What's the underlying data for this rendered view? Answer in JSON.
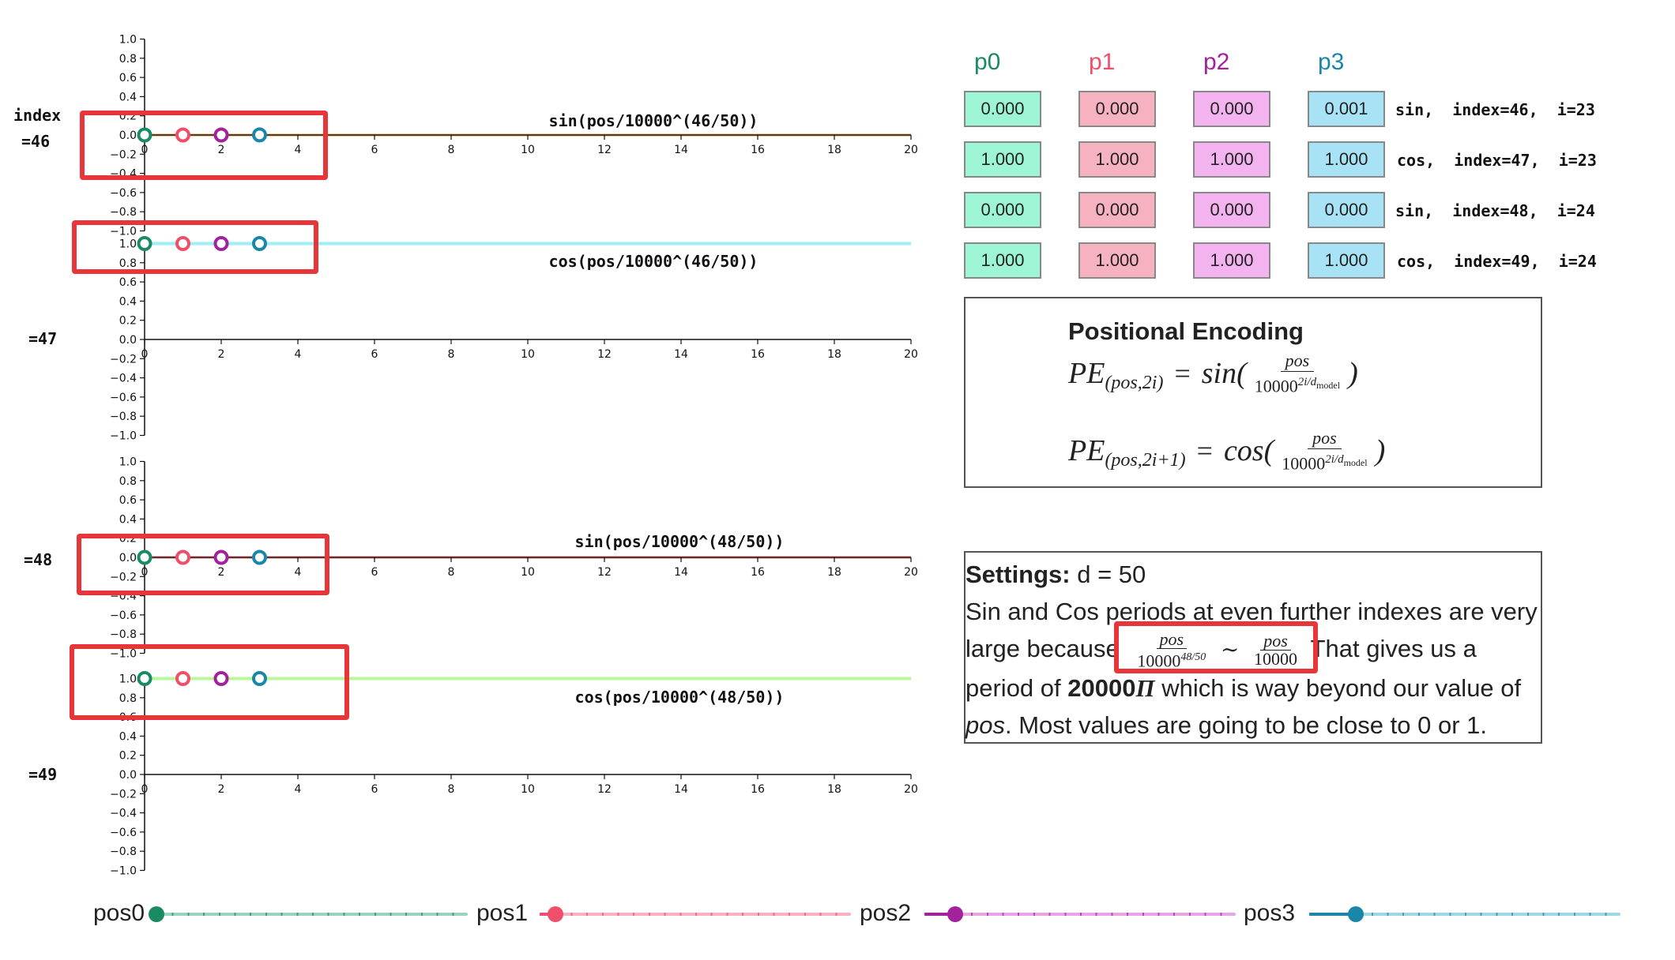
{
  "chart_data": [
    {
      "type": "line",
      "title": "sin(pos/10000^(46/50))",
      "index_label": "index\n=46",
      "line_color": "#f7c98d",
      "x": [
        0,
        20
      ],
      "y": [
        0,
        0
      ],
      "xlim": [
        0,
        20
      ],
      "ylim": [
        -1.0,
        1.0
      ],
      "xticks": [
        "0",
        "2",
        "4",
        "6",
        "8",
        "10",
        "12",
        "14",
        "16",
        "18",
        "20"
      ],
      "yticks": [
        "1.0",
        "0.8",
        "0.6",
        "0.4",
        "0.2",
        "0.0",
        "−0.2",
        "−0.4",
        "−0.6",
        "−0.8",
        "−1.0"
      ],
      "points": [
        {
          "x": 0,
          "y": 0.0
        },
        {
          "x": 1,
          "y": 0.0
        },
        {
          "x": 2,
          "y": 0.0
        },
        {
          "x": 3,
          "y": 0.001
        }
      ]
    },
    {
      "type": "line",
      "title": "cos(pos/10000^(46/50))",
      "index_label": "=47",
      "line_color": "#9eeef5",
      "x": [
        0,
        20
      ],
      "y": [
        1,
        1
      ],
      "xlim": [
        0,
        20
      ],
      "ylim": [
        -1.0,
        1.0
      ],
      "xticks": [
        "0",
        "2",
        "4",
        "6",
        "8",
        "10",
        "12",
        "14",
        "16",
        "18",
        "20"
      ],
      "yticks": [
        "1.0",
        "0.8",
        "0.6",
        "0.4",
        "0.2",
        "0.0",
        "−0.2",
        "−0.4",
        "−0.6",
        "−0.8",
        "−1.0"
      ],
      "points": [
        {
          "x": 0,
          "y": 1.0
        },
        {
          "x": 1,
          "y": 1.0
        },
        {
          "x": 2,
          "y": 1.0
        },
        {
          "x": 3,
          "y": 1.0
        }
      ]
    },
    {
      "type": "line",
      "title": "sin(pos/10000^(48/50))",
      "index_label": "=48",
      "line_color": "#f9b0b0",
      "x": [
        0,
        20
      ],
      "y": [
        0,
        0
      ],
      "xlim": [
        0,
        20
      ],
      "ylim": [
        -1.0,
        1.0
      ],
      "xticks": [
        "0",
        "2",
        "4",
        "6",
        "8",
        "10",
        "12",
        "14",
        "16",
        "18",
        "20"
      ],
      "yticks": [
        "1.0",
        "0.8",
        "0.6",
        "0.4",
        "0.2",
        "0.0",
        "−0.2",
        "−0.4",
        "−0.6",
        "−0.8",
        "−1.0"
      ],
      "points": [
        {
          "x": 0,
          "y": 0.0
        },
        {
          "x": 1,
          "y": 0.0
        },
        {
          "x": 2,
          "y": 0.0
        },
        {
          "x": 3,
          "y": 0.0
        }
      ]
    },
    {
      "type": "line",
      "title": "cos(pos/10000^(48/50))",
      "index_label": "=49",
      "line_color": "#b8f79a",
      "x": [
        0,
        20
      ],
      "y": [
        1,
        1
      ],
      "xlim": [
        0,
        20
      ],
      "ylim": [
        -1.0,
        1.0
      ],
      "xticks": [
        "0",
        "2",
        "4",
        "6",
        "8",
        "10",
        "12",
        "14",
        "16",
        "18",
        "20"
      ],
      "yticks": [
        "1.0",
        "0.8",
        "0.6",
        "0.4",
        "0.2",
        "0.0",
        "−0.2",
        "−0.4",
        "−0.6",
        "−0.8",
        "−1.0"
      ],
      "points": [
        {
          "x": 0,
          "y": 1.0
        },
        {
          "x": 1,
          "y": 1.0
        },
        {
          "x": 2,
          "y": 1.0
        },
        {
          "x": 3,
          "y": 1.0
        }
      ]
    }
  ],
  "point_colors": [
    "#1a8a63",
    "#ef4f6a",
    "#a1229a",
    "#1a86a8"
  ],
  "table": {
    "headers": [
      "p0",
      "p1",
      "p2",
      "p3"
    ],
    "header_colors": [
      "#1a8a63",
      "#ef4f6a",
      "#a1229a",
      "#1a86a8"
    ],
    "cell_colors": [
      "#9ef5d5",
      "#f7b2c2",
      "#f3b3ee",
      "#a8e2f5"
    ],
    "rows": [
      {
        "values": [
          "0.000",
          "0.000",
          "0.000",
          "0.001"
        ],
        "desc": "sin,  index=46,  i=23"
      },
      {
        "values": [
          "1.000",
          "1.000",
          "1.000",
          "1.000"
        ],
        "desc": "cos,  index=47,  i=23"
      },
      {
        "values": [
          "0.000",
          "0.000",
          "0.000",
          "0.000"
        ],
        "desc": "sin,  index=48,  i=24"
      },
      {
        "values": [
          "1.000",
          "1.000",
          "1.000",
          "1.000"
        ],
        "desc": "cos,  index=49,  i=24"
      }
    ]
  },
  "pe": {
    "title": "Positional Encoding",
    "f1_lhs": "PE",
    "f1_sub": "(pos,2i)",
    "f1_fn": "sin(",
    "f2_lhs": "PE",
    "f2_sub": "(pos,2i+1)",
    "f2_fn": "cos(",
    "eq": "=",
    "num": "pos",
    "den": "10000",
    "den_exp": "2i/d",
    "den_exp_sub": "model",
    "close": ")"
  },
  "settings": {
    "label": "Settings:",
    "value": " d = 50",
    "line2": "Sin and Cos periods at even further indexes are very",
    "line3_a": "large because",
    "frac1_num": "pos",
    "frac1_den": "10000",
    "frac1_exp": "48/50",
    "tilde": "∼",
    "frac2_num": "pos",
    "frac2_den": "10000",
    "line3_b": " That gives us a",
    "line4_a": "period of ",
    "line4_bold": "20000",
    "line4_pi": "Π",
    "line4_b": " which is way beyond our value of",
    "line5_it": "pos",
    "line5_b": ". Most values are going to be close to 0 or 1."
  },
  "sliders": [
    {
      "label": "pos0",
      "color": "#1a8a63",
      "track": "#9bd3bf",
      "value": 0
    },
    {
      "label": "pos1",
      "color": "#ef4f6a",
      "track": "#f7b2c2",
      "value": 1
    },
    {
      "label": "pos2",
      "color": "#a1229a",
      "track": "#e6a6e3",
      "value": 2
    },
    {
      "label": "pos3",
      "color": "#1a86a8",
      "track": "#9fd6ea",
      "value": 3
    }
  ],
  "slider_max": 20
}
